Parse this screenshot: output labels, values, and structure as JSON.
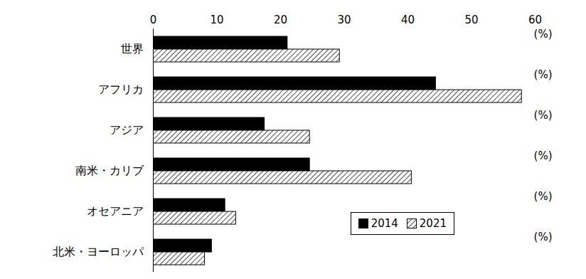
{
  "chart_data": {
    "type": "bar",
    "orientation": "horizontal",
    "categories": [
      "世界",
      "アフリカ",
      "アジア",
      "南米・カリブ",
      "オセアニア",
      "北米・ヨーロッパ"
    ],
    "series": [
      {
        "name": "2014",
        "color": "#000000",
        "values": [
          21.1,
          44.4,
          17.5,
          24.6,
          11.3,
          9.2
        ]
      },
      {
        "name": "2021",
        "color": "#000000",
        "values": [
          29.3,
          57.9,
          24.6,
          40.6,
          13.0,
          8.1
        ]
      }
    ],
    "xlim": [
      0,
      60
    ],
    "xticks": [
      0,
      10,
      20,
      30,
      40,
      50,
      60
    ],
    "xlabel": "(%)",
    "legend": "lower right",
    "grid": false
  }
}
